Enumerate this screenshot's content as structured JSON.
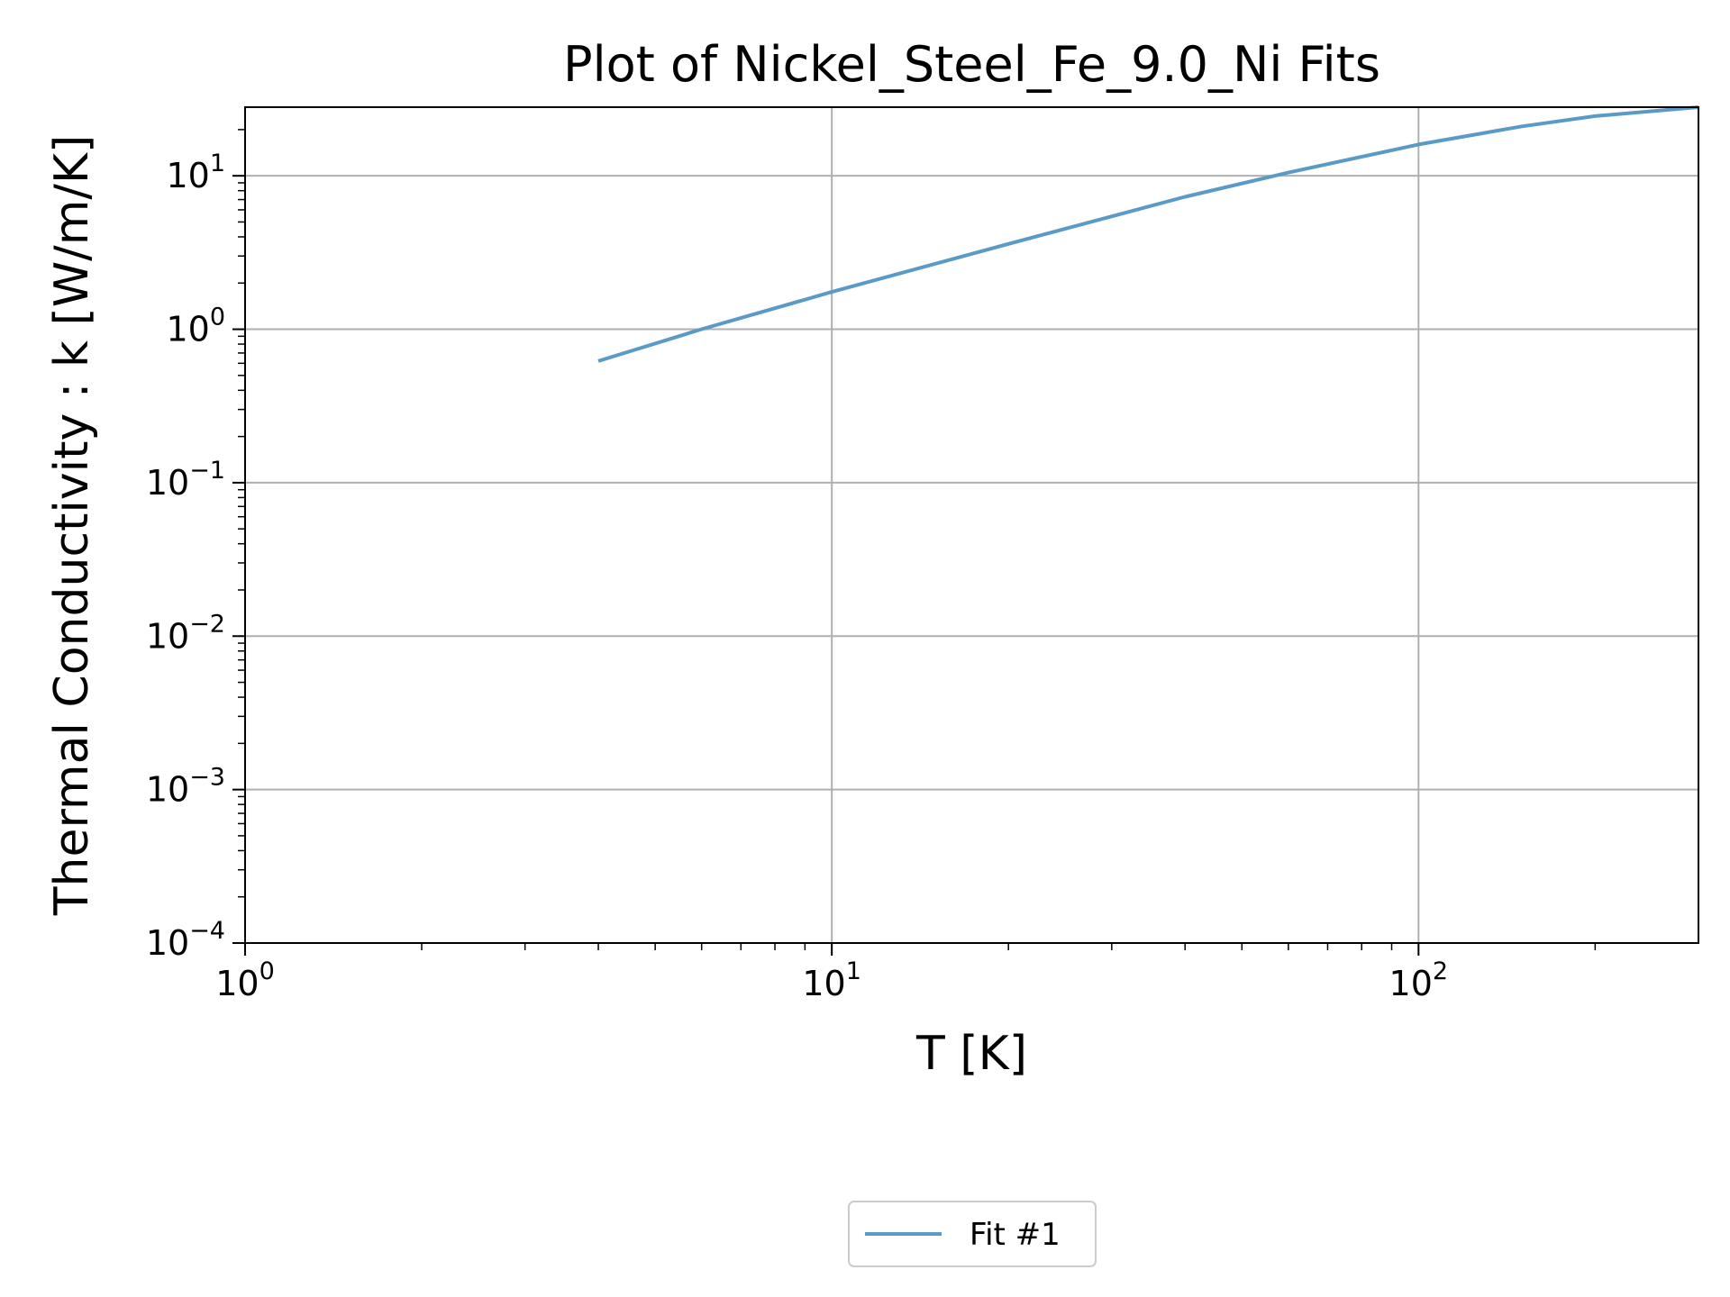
{
  "chart_data": {
    "type": "line",
    "title": "Plot of Nickel_Steel_Fe_9.0_Ni Fits",
    "xlabel": "T [K]",
    "ylabel": "Thermal Conductivity : k [W/m/K]",
    "x_scale": "log",
    "y_scale": "log",
    "xlim": [
      1,
      300
    ],
    "ylim": [
      0.0001,
      28
    ],
    "x_ticks": [
      {
        "value": 1,
        "base": "10",
        "exp": "0"
      },
      {
        "value": 10,
        "base": "10",
        "exp": "1"
      },
      {
        "value": 100,
        "base": "10",
        "exp": "2"
      }
    ],
    "y_ticks": [
      {
        "value": 0.0001,
        "base": "10",
        "exp": "−4"
      },
      {
        "value": 0.001,
        "base": "10",
        "exp": "−3"
      },
      {
        "value": 0.01,
        "base": "10",
        "exp": "−2"
      },
      {
        "value": 0.1,
        "base": "10",
        "exp": "−1"
      },
      {
        "value": 1,
        "base": "10",
        "exp": "0"
      },
      {
        "value": 10,
        "base": "10",
        "exp": "1"
      }
    ],
    "grid": true,
    "legend_position": "bottom-center",
    "series": [
      {
        "name": "Fit #1",
        "color": "#5a9ac6",
        "x": [
          4,
          6,
          10,
          20,
          40,
          60,
          100,
          150,
          200,
          300
        ],
        "y": [
          0.62,
          1.0,
          1.75,
          3.6,
          7.3,
          10.5,
          16.0,
          21.0,
          24.5,
          28.0
        ]
      }
    ]
  }
}
